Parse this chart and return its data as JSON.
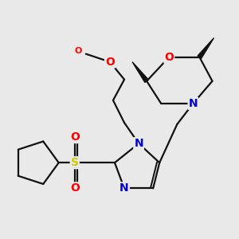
{
  "background_color": "#e9e9e9",
  "atom_colors": {
    "O": "#ff0000",
    "N": "#0000cc",
    "S": "#cccc00",
    "C": "#111111"
  },
  "bond_color": "#111111",
  "bond_lw": 1.6,
  "font_size": 10
}
